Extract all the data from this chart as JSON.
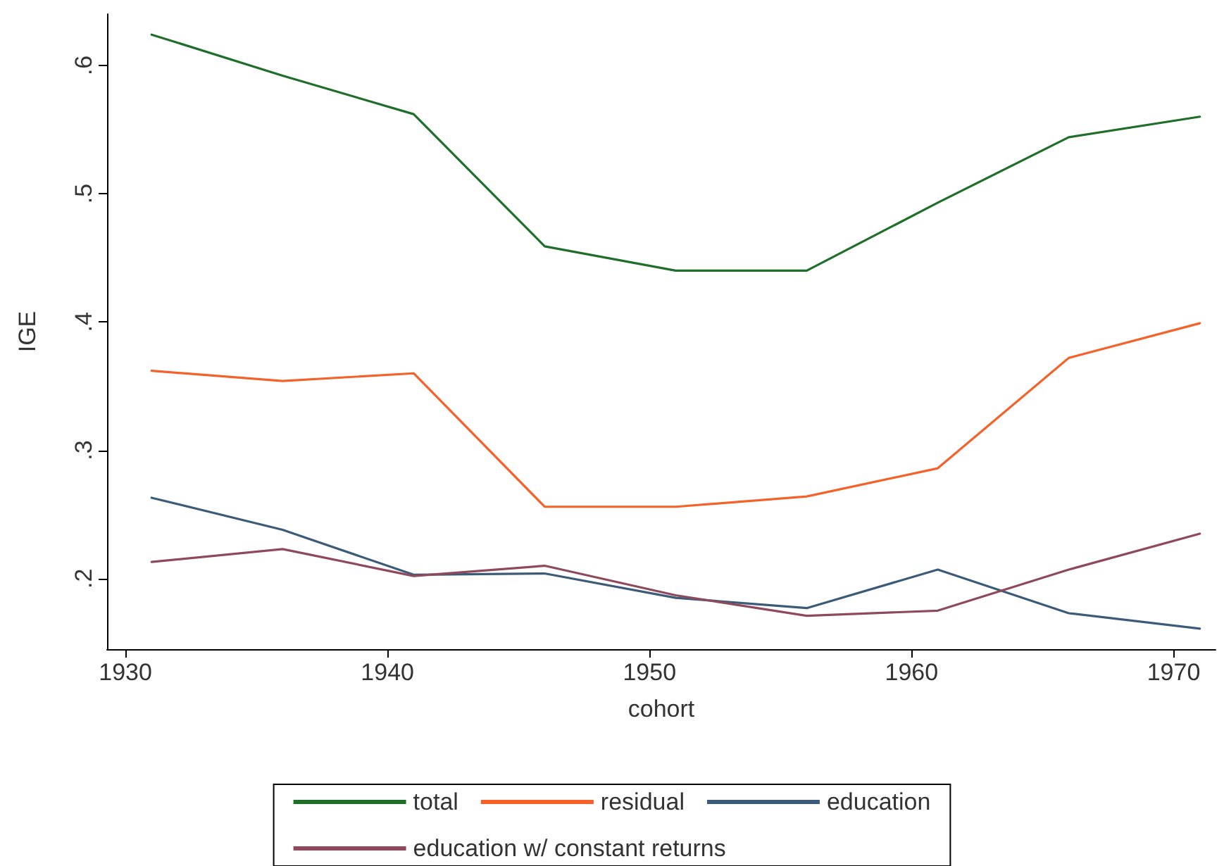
{
  "chart_data": {
    "type": "line",
    "xlabel": "cohort",
    "ylabel": "IGE",
    "x": [
      1931,
      1936,
      1941,
      1946,
      1951,
      1956,
      1961,
      1966,
      1971
    ],
    "series": [
      {
        "name": "total",
        "color": "#1f6e2a",
        "values": [
          0.624,
          0.592,
          0.562,
          0.459,
          0.44,
          0.44,
          0.493,
          0.544,
          0.56
        ]
      },
      {
        "name": "residual",
        "color": "#f4622a",
        "values": [
          0.362,
          0.354,
          0.36,
          0.256,
          0.256,
          0.264,
          0.286,
          0.372,
          0.399
        ]
      },
      {
        "name": "education",
        "color": "#3b5b78",
        "values": [
          0.263,
          0.238,
          0.203,
          0.204,
          0.185,
          0.177,
          0.207,
          0.173,
          0.161
        ]
      },
      {
        "name": "education w/ constant returns",
        "color": "#8e4a5c",
        "values": [
          0.213,
          0.223,
          0.202,
          0.21,
          0.187,
          0.171,
          0.175,
          0.207,
          0.235
        ]
      }
    ],
    "xlim": [
      1929.3,
      1971.6
    ],
    "xticks": [
      1930,
      1940,
      1950,
      1960,
      1970
    ],
    "ylim": [
      0.145,
      0.64
    ],
    "yticks": [
      {
        "value": 0.2,
        "label": ".2"
      },
      {
        "value": 0.3,
        "label": ".3"
      },
      {
        "value": 0.4,
        "label": ".4"
      },
      {
        "value": 0.5,
        "label": ".5"
      },
      {
        "value": 0.6,
        "label": ".6"
      }
    ],
    "grid": false,
    "legend": "bottom",
    "marker": "none",
    "line_style": "solid"
  }
}
